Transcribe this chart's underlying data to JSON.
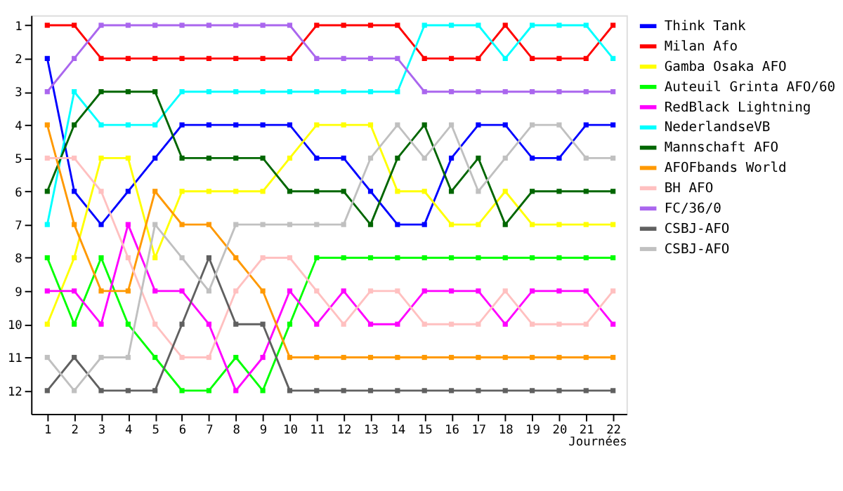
{
  "chart_data": {
    "type": "line",
    "xlabel": "Journées",
    "x": [
      1,
      2,
      3,
      4,
      5,
      6,
      7,
      8,
      9,
      10,
      11,
      12,
      13,
      14,
      15,
      16,
      17,
      18,
      19,
      20,
      21,
      22
    ],
    "xlim": [
      0.4,
      22.5
    ],
    "xticks": [
      1,
      2,
      3,
      4,
      5,
      6,
      7,
      8,
      9,
      10,
      11,
      12,
      13,
      14,
      15,
      16,
      17,
      18,
      19,
      20,
      21,
      22
    ],
    "ylim": [
      12.7,
      0.7
    ],
    "yticks": [
      1,
      2,
      3,
      4,
      5,
      6,
      7,
      8,
      9,
      10,
      11,
      12
    ],
    "grid": false,
    "legend": "right",
    "marker": "square",
    "line_style": "solid",
    "series": [
      {
        "name": "Think Tank",
        "color": "#0000ff",
        "values": [
          2,
          6,
          7,
          6,
          5,
          4,
          4,
          4,
          4,
          4,
          5,
          5,
          6,
          7,
          7,
          5,
          4,
          4,
          5,
          5,
          4,
          4
        ]
      },
      {
        "name": "Milan Afo",
        "color": "#ff0000",
        "values": [
          1,
          1,
          2,
          2,
          2,
          2,
          2,
          2,
          2,
          2,
          1,
          1,
          1,
          1,
          2,
          2,
          2,
          1,
          2,
          2,
          2,
          1
        ]
      },
      {
        "name": "Gamba Osaka AFO",
        "color": "#ffff00",
        "values": [
          10,
          8,
          5,
          5,
          8,
          6,
          6,
          6,
          6,
          5,
          4,
          4,
          4,
          6,
          6,
          7,
          7,
          6,
          7,
          7,
          7,
          7
        ]
      },
      {
        "name": "Auteuil Grinta AFO/60",
        "color": "#00ff00",
        "values": [
          8,
          10,
          8,
          10,
          11,
          12,
          12,
          11,
          12,
          10,
          8,
          8,
          8,
          8,
          8,
          8,
          8,
          8,
          8,
          8,
          8,
          8
        ]
      },
      {
        "name": "RedBlack Lightning",
        "color": "#ff00ff",
        "values": [
          9,
          9,
          10,
          7,
          9,
          9,
          10,
          12,
          11,
          9,
          10,
          9,
          10,
          10,
          9,
          9,
          9,
          10,
          9,
          9,
          9,
          10
        ]
      },
      {
        "name": "NederlandseVB",
        "color": "#00ffff",
        "values": [
          7,
          3,
          4,
          4,
          4,
          3,
          3,
          3,
          3,
          3,
          3,
          3,
          3,
          3,
          1,
          1,
          1,
          2,
          1,
          1,
          1,
          2
        ]
      },
      {
        "name": "Mannschaft AFO",
        "color": "#006600",
        "values": [
          6,
          4,
          3,
          3,
          3,
          5,
          5,
          5,
          5,
          6,
          6,
          6,
          7,
          5,
          4,
          6,
          5,
          7,
          6,
          6,
          6,
          6
        ]
      },
      {
        "name": "AFOFbands World",
        "color": "#ff9900",
        "values": [
          4,
          7,
          9,
          9,
          6,
          7,
          7,
          8,
          9,
          11,
          11,
          11,
          11,
          11,
          11,
          11,
          11,
          11,
          11,
          11,
          11,
          11
        ]
      },
      {
        "name": "BH AFO",
        "color": "#ffc0c0",
        "values": [
          5,
          5,
          6,
          8,
          10,
          11,
          11,
          9,
          8,
          8,
          9,
          10,
          9,
          9,
          10,
          10,
          10,
          9,
          10,
          10,
          10,
          9
        ]
      },
      {
        "name": "FC/36/0",
        "color": "#aa66ee",
        "values": [
          3,
          2,
          1,
          1,
          1,
          1,
          1,
          1,
          1,
          1,
          2,
          2,
          2,
          2,
          3,
          3,
          3,
          3,
          3,
          3,
          3,
          3
        ]
      },
      {
        "name": "CSBJ-AFO",
        "color": "#606060",
        "values": [
          12,
          11,
          12,
          12,
          12,
          10,
          8,
          10,
          10,
          12,
          12,
          12,
          12,
          12,
          12,
          12,
          12,
          12,
          12,
          12,
          12,
          12
        ]
      },
      {
        "name": "CSBJ-AFO",
        "color": "#c0c0c0",
        "values": [
          11,
          12,
          11,
          11,
          7,
          8,
          9,
          7,
          7,
          7,
          7,
          7,
          5,
          4,
          5,
          4,
          6,
          5,
          4,
          4,
          5,
          5
        ]
      }
    ]
  }
}
